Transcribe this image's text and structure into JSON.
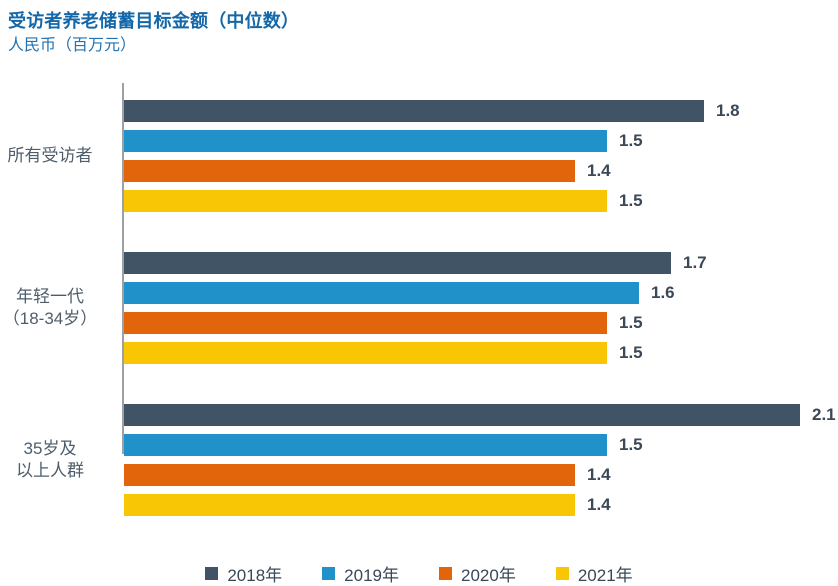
{
  "chart_data": {
    "type": "bar",
    "orientation": "horizontal",
    "title": "受访者养老储蓄目标金额（中位数）",
    "subtitle": "人民币（百万元）",
    "categories": [
      [
        "所有受访者"
      ],
      [
        "年轻一代",
        "（18-34岁）"
      ],
      [
        "35岁及",
        "以上人群"
      ]
    ],
    "series": [
      {
        "name": "2018年",
        "color": "#405466",
        "values": [
          1.8,
          1.7,
          2.1
        ]
      },
      {
        "name": "2019年",
        "color": "#2191C9",
        "values": [
          1.5,
          1.6,
          1.5
        ]
      },
      {
        "name": "2020年",
        "color": "#E3650B",
        "values": [
          1.4,
          1.5,
          1.4
        ]
      },
      {
        "name": "2021年",
        "color": "#F9C606",
        "values": [
          1.5,
          1.5,
          1.4
        ]
      }
    ],
    "xlim": [
      0,
      2.2
    ],
    "value_decimals": 1,
    "grid": "off",
    "legend_position": "bottom",
    "colors": {
      "title": "#1468A9",
      "subtitle": "#2173B3",
      "category_label": "#4E5D6B",
      "value_label": "#3A4857",
      "axis_line": "#9DA0A4"
    }
  }
}
